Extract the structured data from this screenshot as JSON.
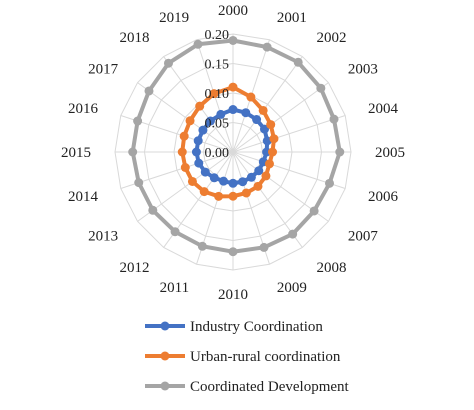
{
  "chart_data": {
    "type": "radar",
    "categories": [
      "2000",
      "2001",
      "2002",
      "2003",
      "2004",
      "2005",
      "2006",
      "2007",
      "2008",
      "2009",
      "2010",
      "2011",
      "2012",
      "2013",
      "2014",
      "2015",
      "2016",
      "2017",
      "2018",
      "2019"
    ],
    "rlim": [
      0,
      0.2
    ],
    "ticks": [
      "0.00",
      "0.05",
      "0.10",
      "0.15",
      "0.20"
    ],
    "tick_values": [
      0,
      0.05,
      0.1,
      0.15,
      0.2
    ],
    "grid": true,
    "legend_position": "bottom",
    "series": [
      {
        "name": "Industry Coordination",
        "color": "#4472C4",
        "values": [
          0.072,
          0.07,
          0.068,
          0.066,
          0.061,
          0.057,
          0.054,
          0.054,
          0.053,
          0.053,
          0.053,
          0.052,
          0.054,
          0.058,
          0.061,
          0.062,
          0.062,
          0.063,
          0.065,
          0.067
        ]
      },
      {
        "name": "Urban-rural coordination",
        "color": "#ED7D31",
        "values": [
          0.11,
          0.098,
          0.087,
          0.079,
          0.073,
          0.067,
          0.065,
          0.069,
          0.072,
          0.073,
          0.075,
          0.079,
          0.083,
          0.085,
          0.085,
          0.086,
          0.087,
          0.09,
          0.096,
          0.104
        ]
      },
      {
        "name": "Coordinated Development",
        "color": "#A5A5A5",
        "values": [
          0.189,
          0.187,
          0.188,
          0.184,
          0.18,
          0.181,
          0.172,
          0.17,
          0.172,
          0.17,
          0.169,
          0.168,
          0.167,
          0.168,
          0.168,
          0.17,
          0.17,
          0.176,
          0.186,
          0.192
        ]
      }
    ]
  }
}
